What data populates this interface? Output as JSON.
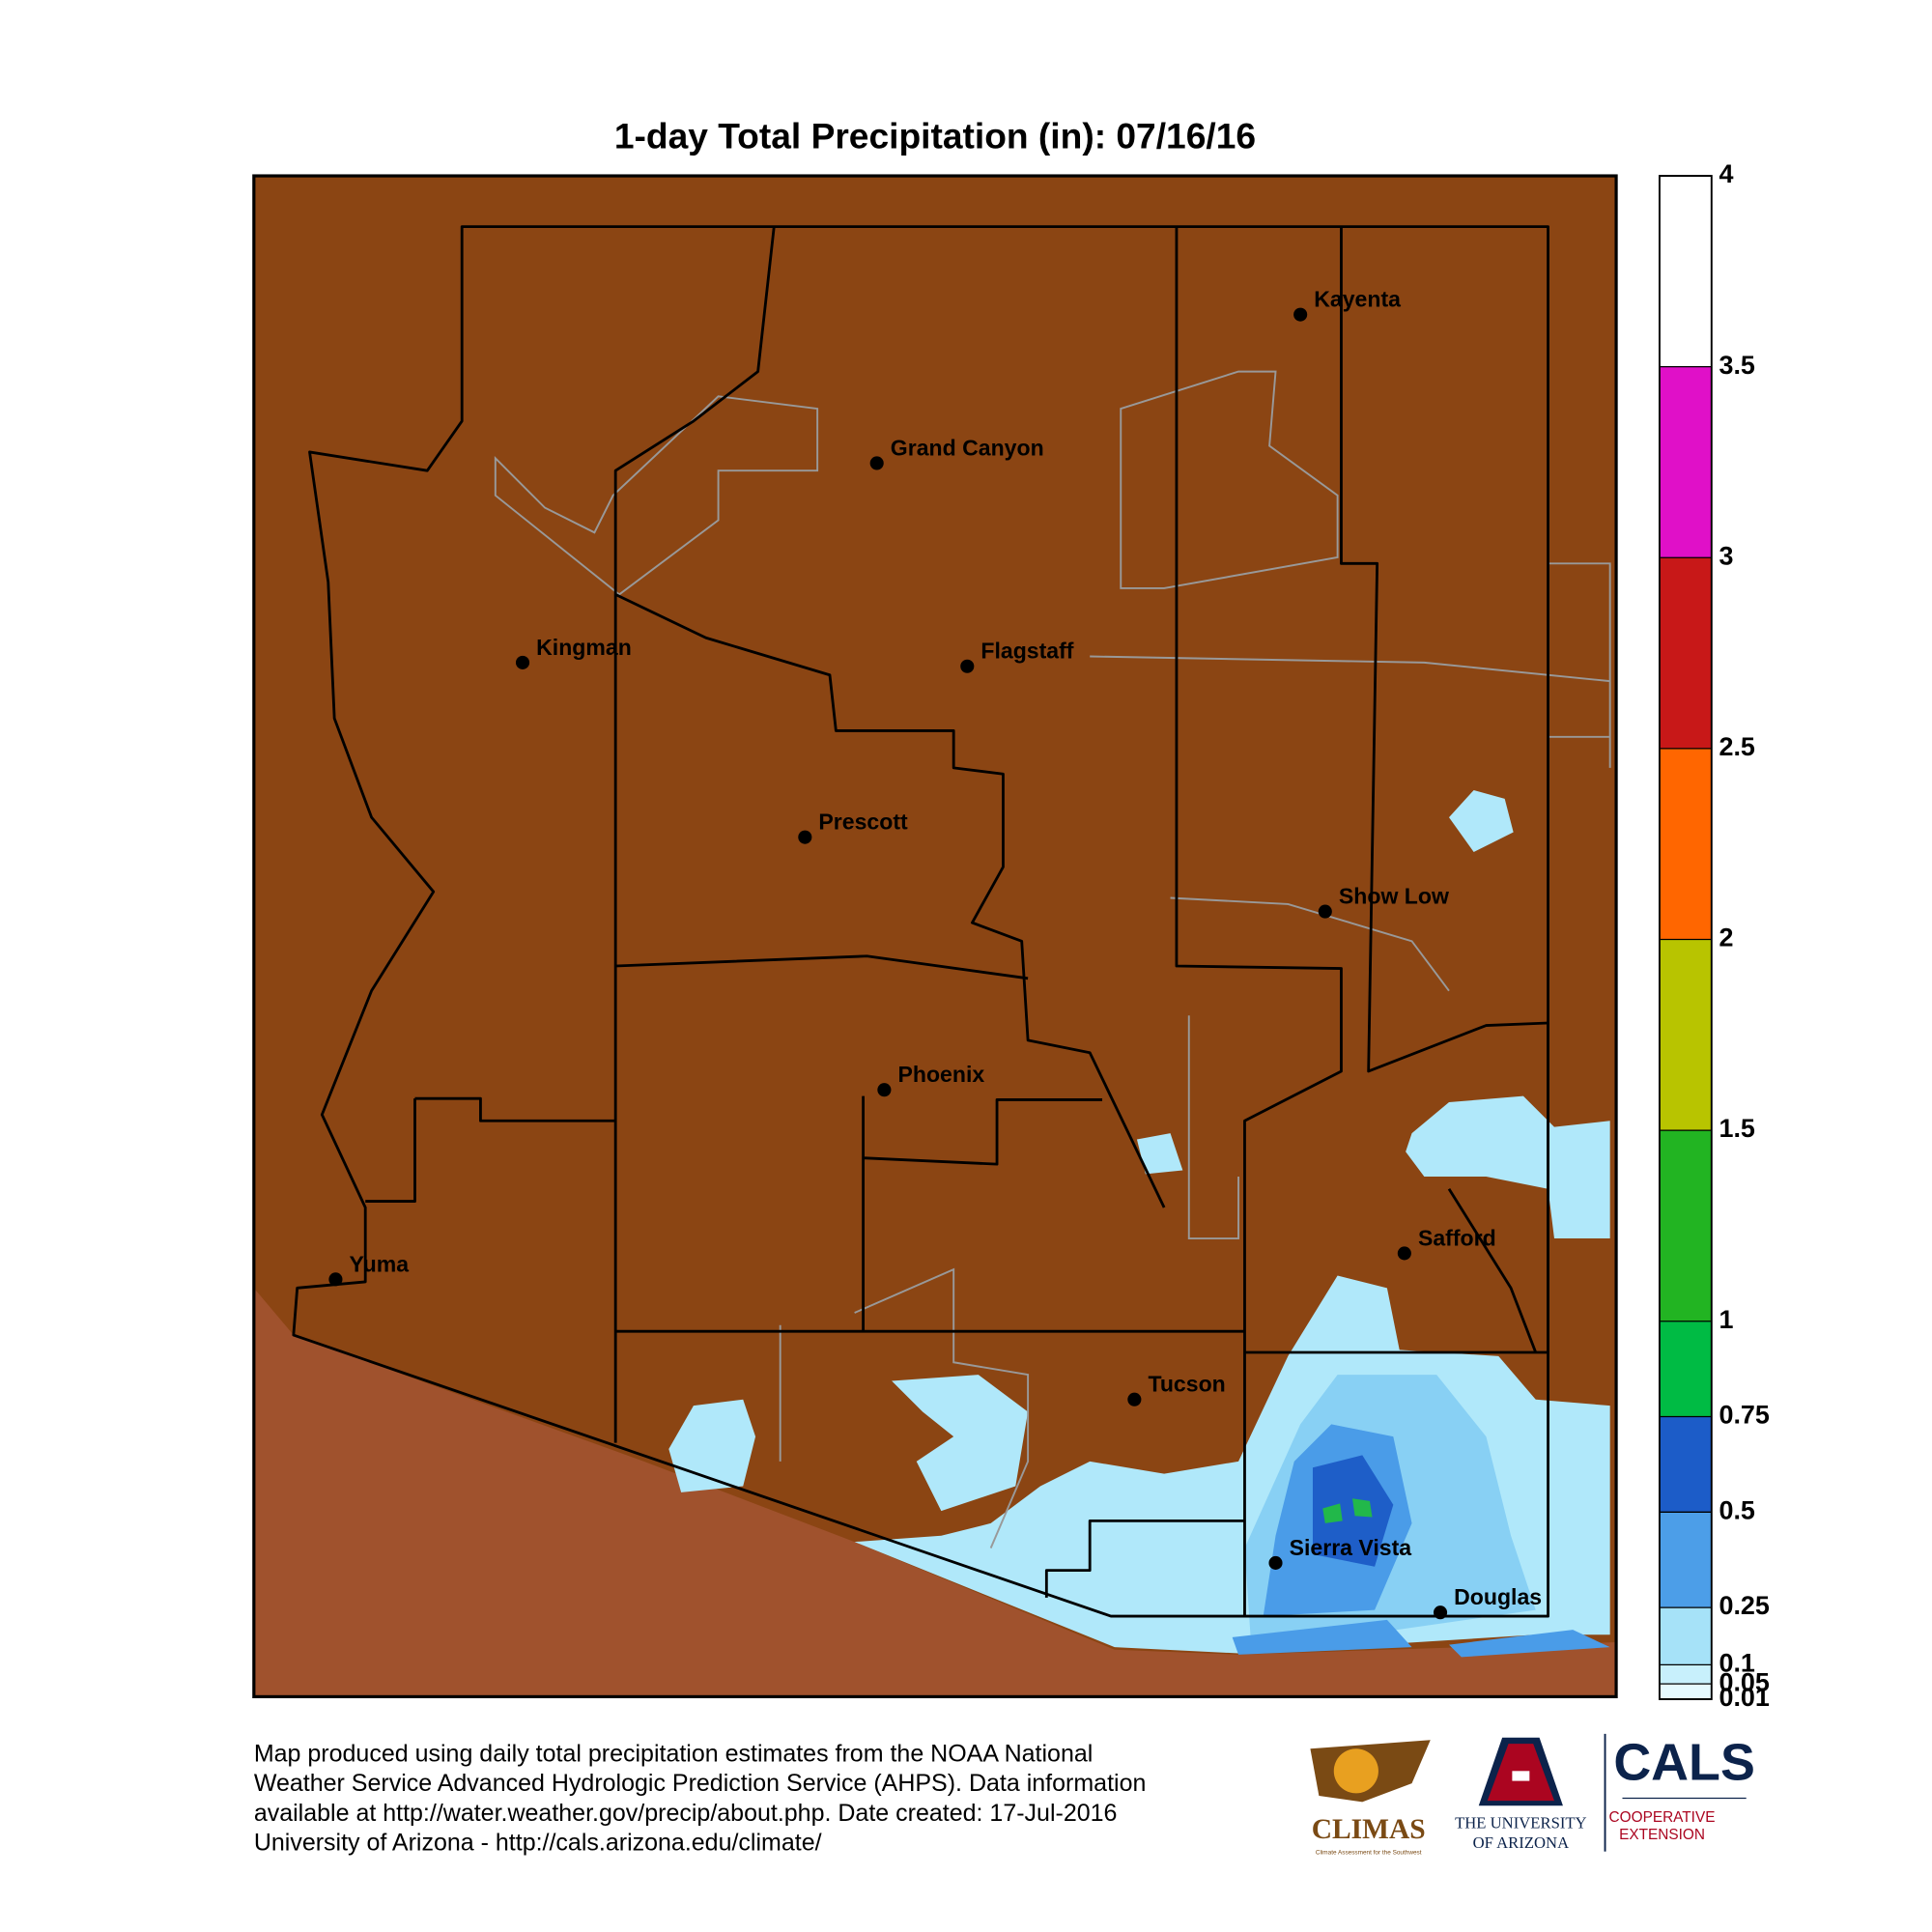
{
  "title": "1-day Total Precipitation (in): 07/16/16",
  "map": {
    "cities": [
      "Kayenta",
      "Grand Canyon",
      "Kingman",
      "Flagstaff",
      "Prescott",
      "Show Low",
      "Phoenix",
      "Safford",
      "Yuma",
      "Tucson",
      "Sierra Vista",
      "Douglas"
    ]
  },
  "colorbar": {
    "ticks": [
      0.01,
      0.05,
      0.1,
      0.25,
      0.5,
      0.75,
      1,
      1.5,
      2,
      2.5,
      3,
      3.5,
      4
    ],
    "lim": [
      0.01,
      4
    ],
    "colors": [
      "#e6faff",
      "#c8f0fc",
      "#a6e2f8",
      "#4c9ee8",
      "#1c5cc8",
      "#00bb44",
      "#22b422",
      "#b8c400",
      "#ff6600",
      "#c81818",
      "#e010c8",
      "#ffffff"
    ]
  },
  "footer": {
    "lines": [
      "Map produced using daily total precipitation estimates from the NOAA National",
      "Weather Service Advanced Hydrologic Prediction Service (AHPS). Data information",
      "available at http://water.weather.gov/precip/about.php. Date created: 17-Jul-2016",
      "University of Arizona - http://cals.arizona.edu/climate/"
    ]
  },
  "logos": {
    "climas": "CLIMAS",
    "climas_tagline": "Climate Assessment for the Southwest",
    "university": [
      "THE UNIVERSITY",
      "OF ARIZONA"
    ],
    "cals": "CALS",
    "cals_sub": [
      "COOPERATIVE",
      "EXTENSION"
    ]
  }
}
